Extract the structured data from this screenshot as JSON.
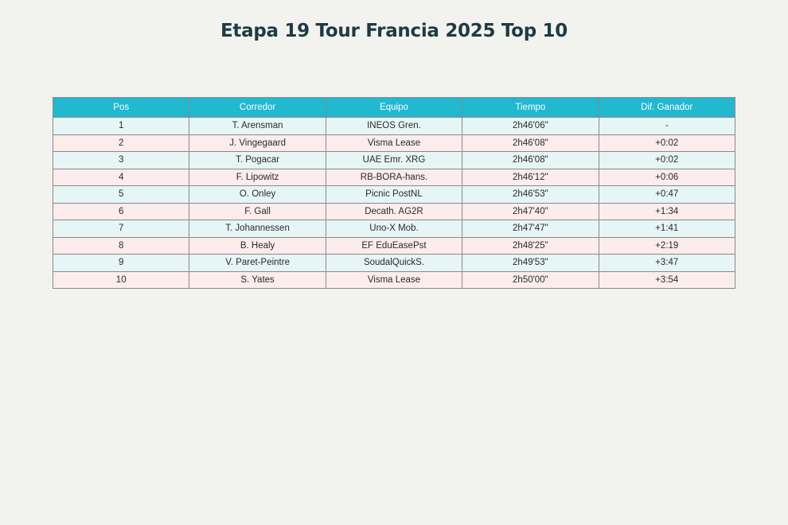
{
  "chart_data": {
    "type": "table",
    "title": "Etapa 19 Tour Francia 2025 Top 10",
    "columns": [
      "Pos",
      "Corredor",
      "Equipo",
      "Tiempo",
      "Dif. Ganador"
    ],
    "rows": [
      [
        "1",
        "T. Arensman",
        "INEOS Gren.",
        "2h46'06\"",
        "-"
      ],
      [
        "2",
        "J. Vingegaard",
        "Visma Lease",
        "2h46'08\"",
        "+0:02"
      ],
      [
        "3",
        "T. Pogacar",
        "UAE Emr. XRG",
        "2h46'08\"",
        "+0:02"
      ],
      [
        "4",
        "F. Lipowitz",
        "RB-BORA-hans.",
        "2h46'12\"",
        "+0:06"
      ],
      [
        "5",
        "O. Onley",
        "Picnic PostNL",
        "2h46'53\"",
        "+0:47"
      ],
      [
        "6",
        "F. Gall",
        "Decath. AG2R",
        "2h47'40\"",
        "+1:34"
      ],
      [
        "7",
        "T. Johannessen",
        "Uno-X Mob.",
        "2h47'47\"",
        "+1:41"
      ],
      [
        "8",
        "B. Healy",
        "EF EduEasePst",
        "2h48'25\"",
        "+2:19"
      ],
      [
        "9",
        "V. Paret-Peintre",
        "SoudalQuickS.",
        "2h49'53\"",
        "+3:47"
      ],
      [
        "10",
        "S. Yates",
        "Visma Lease",
        "2h50'00\"",
        "+3:54"
      ]
    ]
  },
  "colors": {
    "header_bg": "#21b8d0",
    "header_text": "#ffffff",
    "row_odd": "#e6f5f6",
    "row_even": "#fcecec",
    "title": "#1f3a44",
    "background": "#f2f2ee"
  }
}
